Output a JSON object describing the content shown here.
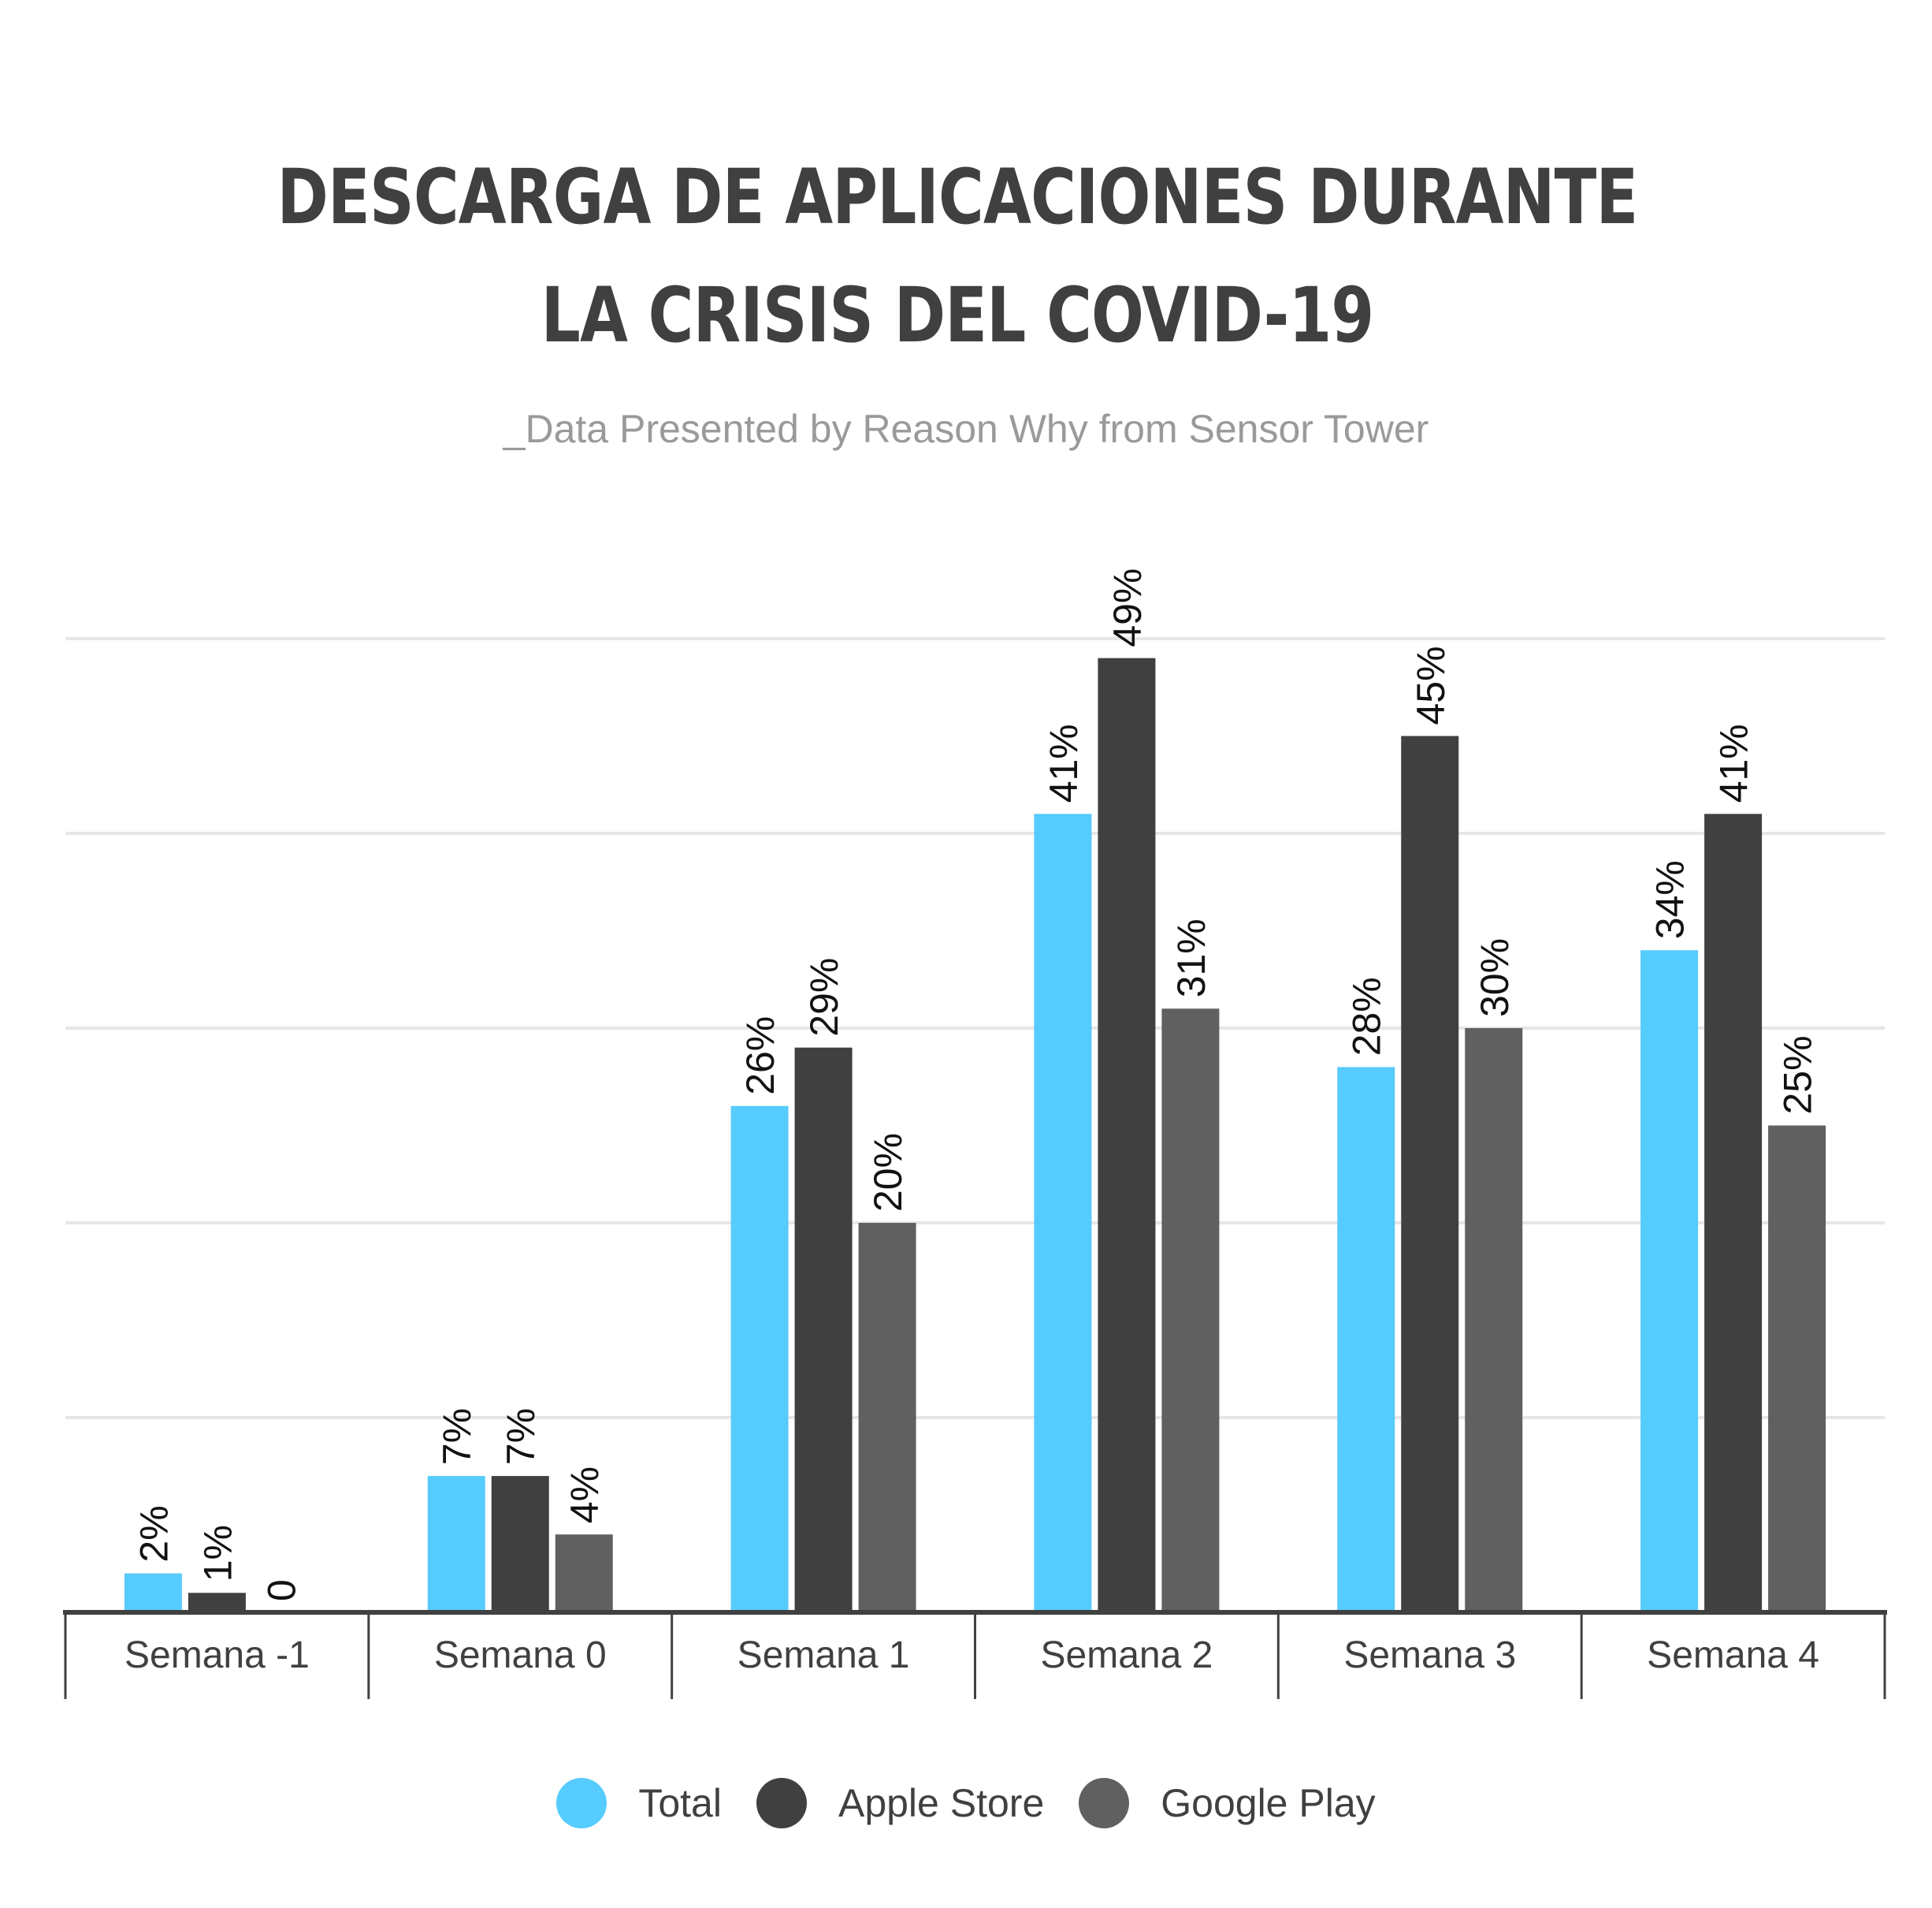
{
  "title": "DESCARGA DE APLICACIONES DURANTE LA CRISIS DEL COVID-19",
  "subtitle": "_Data Presented by Reason Why from Sensor Tower",
  "colors": {
    "total": "#56cbfd",
    "apple": "#404040",
    "google": "#606060",
    "grid": "#e6e6e6",
    "axis": "#404040"
  },
  "chart_data": {
    "type": "bar",
    "categories": [
      "Semana -1",
      "Semana 0",
      "Semana 1",
      "Semana 2",
      "Semana 3",
      "Semana 4"
    ],
    "series": [
      {
        "name": "Total",
        "values": [
          2,
          7,
          26,
          41,
          28,
          34
        ],
        "labels": [
          "2%",
          "7%",
          "26%",
          "41%",
          "28%",
          "34%"
        ]
      },
      {
        "name": "Apple Store",
        "values": [
          1,
          7,
          29,
          49,
          45,
          41
        ],
        "labels": [
          "1%",
          "7%",
          "29%",
          "49%",
          "45%",
          "41%"
        ]
      },
      {
        "name": "Google Play",
        "values": [
          0,
          4,
          20,
          31,
          30,
          25
        ],
        "labels": [
          "0",
          "4%",
          "20%",
          "31%",
          "30%",
          "25%"
        ]
      }
    ],
    "ylim": [
      0,
      50
    ],
    "grid": true,
    "legend": "bottom-center"
  }
}
